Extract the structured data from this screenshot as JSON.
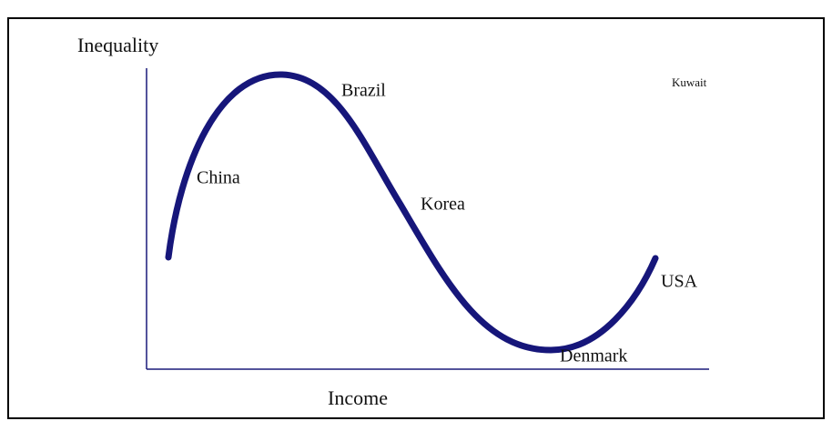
{
  "axes": {
    "y_label": "Inequality",
    "x_label": "Income"
  },
  "labels": [
    "China",
    "Brazil",
    "Korea",
    "Denmark",
    "USA",
    "Kuwait"
  ]
}
